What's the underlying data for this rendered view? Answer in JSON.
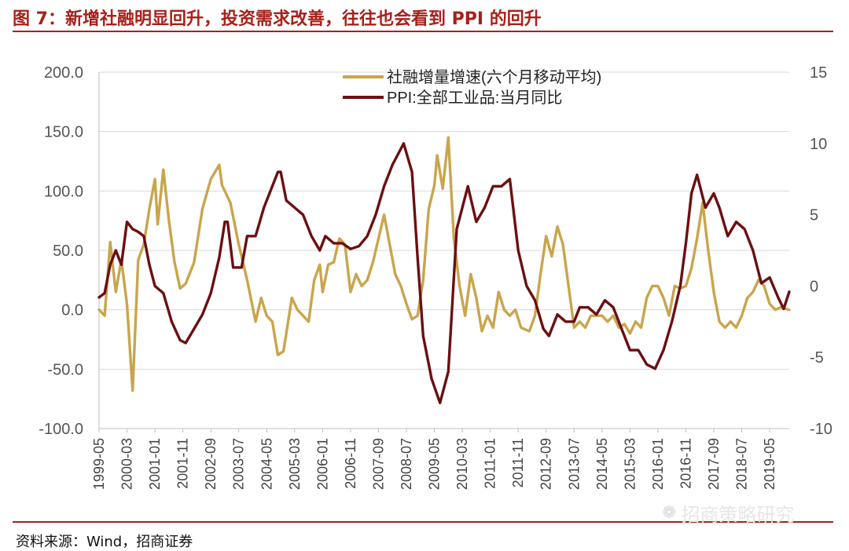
{
  "header": {
    "title": "图 7：新增社融明显回升，投资需求改善，往往也会看到 PPI 的回升"
  },
  "footer": {
    "source": "资料来源：Wind，招商证券",
    "watermark": "招商策略研究",
    "watermark_icon": "wechat-icon"
  },
  "chart_data": {
    "type": "line",
    "title": "",
    "xlabel": "",
    "ylabel": "",
    "y_left_lim": [
      -100,
      200
    ],
    "y_left_ticks": [
      "200.0",
      "150.0",
      "100.0",
      "50.0",
      "0.0",
      "-50.0",
      "-100.0"
    ],
    "y_right_lim": [
      -10,
      15
    ],
    "y_right_ticks": [
      "15",
      "10",
      "5",
      "0",
      "-5",
      "-10"
    ],
    "x_range": [
      "1999-05",
      "2019-12"
    ],
    "x_ticks": [
      "1999-05",
      "2000-03",
      "2001-01",
      "2001-11",
      "2002-09",
      "2003-07",
      "2004-05",
      "2005-03",
      "2006-01",
      "2006-11",
      "2007-09",
      "2008-07",
      "2009-05",
      "2010-03",
      "2011-01",
      "2011-11",
      "2012-09",
      "2013-07",
      "2014-05",
      "2015-03",
      "2016-01",
      "2016-11",
      "2017-09",
      "2018-07",
      "2019-05"
    ],
    "grid": "horizontal",
    "legend_position": "top-center",
    "series": [
      {
        "name": "社融增量增速(六个月移动平均)",
        "axis": "left",
        "color": "#c9a54c",
        "points": [
          [
            "1999-05",
            0
          ],
          [
            "1999-07",
            -5
          ],
          [
            "1999-09",
            57
          ],
          [
            "1999-11",
            15
          ],
          [
            "2000-01",
            42
          ],
          [
            "2000-03",
            5
          ],
          [
            "2000-05",
            -68
          ],
          [
            "2000-07",
            42
          ],
          [
            "2000-09",
            55
          ],
          [
            "2000-11",
            85
          ],
          [
            "2001-01",
            110
          ],
          [
            "2001-02",
            72
          ],
          [
            "2001-04",
            118
          ],
          [
            "2001-06",
            75
          ],
          [
            "2001-08",
            40
          ],
          [
            "2001-10",
            18
          ],
          [
            "2001-12",
            22
          ],
          [
            "2002-03",
            40
          ],
          [
            "2002-06",
            85
          ],
          [
            "2002-09",
            110
          ],
          [
            "2002-12",
            122
          ],
          [
            "2003-01",
            105
          ],
          [
            "2003-04",
            90
          ],
          [
            "2003-07",
            55
          ],
          [
            "2003-10",
            25
          ],
          [
            "2004-01",
            -10
          ],
          [
            "2004-03",
            10
          ],
          [
            "2004-05",
            -5
          ],
          [
            "2004-07",
            -10
          ],
          [
            "2004-09",
            -38
          ],
          [
            "2004-11",
            -35
          ],
          [
            "2005-01",
            -5
          ],
          [
            "2005-02",
            10
          ],
          [
            "2005-04",
            0
          ],
          [
            "2005-06",
            -5
          ],
          [
            "2005-08",
            -10
          ],
          [
            "2005-10",
            25
          ],
          [
            "2005-12",
            38
          ],
          [
            "2006-01",
            15
          ],
          [
            "2006-03",
            38
          ],
          [
            "2006-05",
            40
          ],
          [
            "2006-07",
            60
          ],
          [
            "2006-09",
            55
          ],
          [
            "2006-11",
            15
          ],
          [
            "2007-01",
            30
          ],
          [
            "2007-03",
            20
          ],
          [
            "2007-05",
            25
          ],
          [
            "2007-07",
            40
          ],
          [
            "2007-09",
            60
          ],
          [
            "2007-11",
            80
          ],
          [
            "2008-01",
            55
          ],
          [
            "2008-03",
            30
          ],
          [
            "2008-05",
            20
          ],
          [
            "2008-07",
            5
          ],
          [
            "2008-09",
            -8
          ],
          [
            "2008-11",
            -5
          ],
          [
            "2009-01",
            25
          ],
          [
            "2009-03",
            85
          ],
          [
            "2009-05",
            105
          ],
          [
            "2009-06",
            130
          ],
          [
            "2009-08",
            102
          ],
          [
            "2009-10",
            145
          ],
          [
            "2009-12",
            60
          ],
          [
            "2010-02",
            20
          ],
          [
            "2010-04",
            -5
          ],
          [
            "2010-06",
            30
          ],
          [
            "2010-08",
            10
          ],
          [
            "2010-10",
            -18
          ],
          [
            "2010-12",
            -5
          ],
          [
            "2011-02",
            -15
          ],
          [
            "2011-04",
            15
          ],
          [
            "2011-06",
            0
          ],
          [
            "2011-08",
            -5
          ],
          [
            "2011-10",
            0
          ],
          [
            "2011-12",
            -15
          ],
          [
            "2012-03",
            -18
          ],
          [
            "2012-05",
            -5
          ],
          [
            "2012-07",
            30
          ],
          [
            "2012-09",
            62
          ],
          [
            "2012-11",
            45
          ],
          [
            "2013-01",
            70
          ],
          [
            "2013-03",
            55
          ],
          [
            "2013-05",
            20
          ],
          [
            "2013-07",
            -15
          ],
          [
            "2013-09",
            -10
          ],
          [
            "2013-11",
            -15
          ],
          [
            "2014-01",
            -5
          ],
          [
            "2014-03",
            -5
          ],
          [
            "2014-05",
            -5
          ],
          [
            "2014-07",
            -10
          ],
          [
            "2014-09",
            -5
          ],
          [
            "2014-11",
            -15
          ],
          [
            "2015-01",
            -12
          ],
          [
            "2015-03",
            -20
          ],
          [
            "2015-05",
            -10
          ],
          [
            "2015-07",
            -15
          ],
          [
            "2015-09",
            10
          ],
          [
            "2015-11",
            20
          ],
          [
            "2016-01",
            20
          ],
          [
            "2016-03",
            10
          ],
          [
            "2016-05",
            -5
          ],
          [
            "2016-07",
            20
          ],
          [
            "2016-09",
            18
          ],
          [
            "2016-11",
            20
          ],
          [
            "2017-01",
            35
          ],
          [
            "2017-03",
            60
          ],
          [
            "2017-05",
            90
          ],
          [
            "2017-07",
            50
          ],
          [
            "2017-09",
            15
          ],
          [
            "2017-11",
            -10
          ],
          [
            "2018-01",
            -15
          ],
          [
            "2018-03",
            -10
          ],
          [
            "2018-05",
            -15
          ],
          [
            "2018-07",
            -5
          ],
          [
            "2018-09",
            10
          ],
          [
            "2018-11",
            15
          ],
          [
            "2019-01",
            25
          ],
          [
            "2019-03",
            20
          ],
          [
            "2019-05",
            5
          ],
          [
            "2019-07",
            0
          ],
          [
            "2019-09",
            2
          ],
          [
            "2019-12",
            0
          ]
        ]
      },
      {
        "name": "PPI:全部工业品:当月同比",
        "axis": "right",
        "color": "#6b0f12",
        "points": [
          [
            "1999-05",
            -0.8
          ],
          [
            "1999-07",
            -0.5
          ],
          [
            "1999-09",
            1.5
          ],
          [
            "1999-11",
            2.5
          ],
          [
            "2000-01",
            1.5
          ],
          [
            "2000-03",
            4.5
          ],
          [
            "2000-05",
            4.0
          ],
          [
            "2000-07",
            3.8
          ],
          [
            "2000-09",
            3.5
          ],
          [
            "2000-11",
            1.5
          ],
          [
            "2001-01",
            0
          ],
          [
            "2001-04",
            -0.5
          ],
          [
            "2001-07",
            -2.5
          ],
          [
            "2001-10",
            -3.8
          ],
          [
            "2001-12",
            -4.0
          ],
          [
            "2002-03",
            -3.0
          ],
          [
            "2002-06",
            -2.0
          ],
          [
            "2002-09",
            -0.5
          ],
          [
            "2002-12",
            2.0
          ],
          [
            "2003-02",
            4.5
          ],
          [
            "2003-03",
            4.5
          ],
          [
            "2003-05",
            1.3
          ],
          [
            "2003-08",
            1.3
          ],
          [
            "2003-10",
            3.5
          ],
          [
            "2004-01",
            3.5
          ],
          [
            "2004-04",
            5.5
          ],
          [
            "2004-07",
            7.0
          ],
          [
            "2004-09",
            8.0
          ],
          [
            "2004-10",
            8.0
          ],
          [
            "2004-12",
            6.0
          ],
          [
            "2005-03",
            5.5
          ],
          [
            "2005-06",
            5.0
          ],
          [
            "2005-09",
            3.5
          ],
          [
            "2005-12",
            2.5
          ],
          [
            "2006-02",
            3.5
          ],
          [
            "2006-05",
            3.0
          ],
          [
            "2006-08",
            3.0
          ],
          [
            "2006-11",
            2.6
          ],
          [
            "2007-02",
            2.8
          ],
          [
            "2007-05",
            3.5
          ],
          [
            "2007-08",
            5.0
          ],
          [
            "2007-11",
            7.0
          ],
          [
            "2008-02",
            8.5
          ],
          [
            "2008-06",
            10.0
          ],
          [
            "2008-09",
            8.0
          ],
          [
            "2008-11",
            2.0
          ],
          [
            "2009-01",
            -3.5
          ],
          [
            "2009-04",
            -6.5
          ],
          [
            "2009-07",
            -8.2
          ],
          [
            "2009-10",
            -6.0
          ],
          [
            "2010-01",
            4.0
          ],
          [
            "2010-05",
            7.0
          ],
          [
            "2010-08",
            4.5
          ],
          [
            "2010-11",
            5.5
          ],
          [
            "2011-02",
            7.0
          ],
          [
            "2011-05",
            7.0
          ],
          [
            "2011-08",
            7.5
          ],
          [
            "2011-11",
            2.5
          ],
          [
            "2012-02",
            0
          ],
          [
            "2012-05",
            -1.0
          ],
          [
            "2012-08",
            -3.0
          ],
          [
            "2012-10",
            -3.5
          ],
          [
            "2013-01",
            -2.0
          ],
          [
            "2013-04",
            -2.5
          ],
          [
            "2013-07",
            -2.5
          ],
          [
            "2013-09",
            -1.5
          ],
          [
            "2013-12",
            -1.5
          ],
          [
            "2014-03",
            -2.0
          ],
          [
            "2014-06",
            -1.0
          ],
          [
            "2014-09",
            -1.5
          ],
          [
            "2014-12",
            -3.0
          ],
          [
            "2015-03",
            -4.5
          ],
          [
            "2015-06",
            -4.5
          ],
          [
            "2015-09",
            -5.5
          ],
          [
            "2015-12",
            -5.8
          ],
          [
            "2016-03",
            -4.5
          ],
          [
            "2016-06",
            -2.5
          ],
          [
            "2016-09",
            0
          ],
          [
            "2016-11",
            3.0
          ],
          [
            "2017-01",
            6.5
          ],
          [
            "2017-03",
            7.8
          ],
          [
            "2017-06",
            5.5
          ],
          [
            "2017-09",
            6.5
          ],
          [
            "2017-11",
            5.5
          ],
          [
            "2018-02",
            3.5
          ],
          [
            "2018-05",
            4.5
          ],
          [
            "2018-08",
            4.0
          ],
          [
            "2018-11",
            2.5
          ],
          [
            "2019-02",
            0.2
          ],
          [
            "2019-05",
            0.6
          ],
          [
            "2019-08",
            -0.8
          ],
          [
            "2019-10",
            -1.6
          ],
          [
            "2019-12",
            -0.4
          ]
        ]
      }
    ]
  }
}
